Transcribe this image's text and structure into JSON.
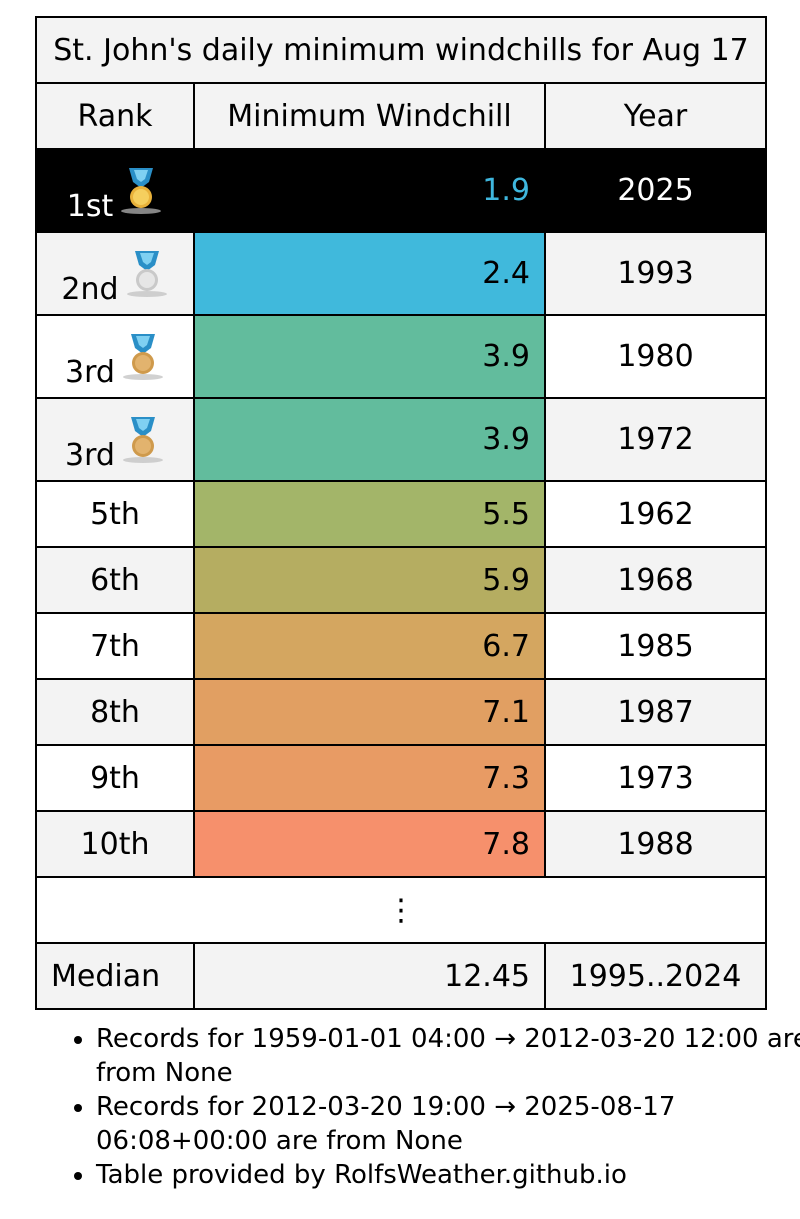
{
  "table": {
    "title": "St. John's daily minimum windchills for Aug 17",
    "headers": [
      "Rank",
      "Minimum Windchill",
      "Year"
    ],
    "rows": [
      {
        "rank": "1st",
        "value": "1.9",
        "year": "2025",
        "color": "#000000",
        "medal": "gold-medal-icon"
      },
      {
        "rank": "2nd",
        "value": "2.4",
        "year": "1993",
        "color": "#40b9dc",
        "medal": "silver-medal-icon"
      },
      {
        "rank": "3rd",
        "value": "3.9",
        "year": "1980",
        "color": "#62bc9d",
        "medal": "bronze-medal-icon"
      },
      {
        "rank": "3rd",
        "value": "3.9",
        "year": "1972",
        "color": "#62bc9d",
        "medal": "bronze-medal-icon"
      },
      {
        "rank": "5th",
        "value": "5.5",
        "year": "1962",
        "color": "#a3b569"
      },
      {
        "rank": "6th",
        "value": "5.9",
        "year": "1968",
        "color": "#b5ad61"
      },
      {
        "rank": "7th",
        "value": "6.7",
        "year": "1985",
        "color": "#d4a660"
      },
      {
        "rank": "8th",
        "value": "7.1",
        "year": "1987",
        "color": "#e19f62"
      },
      {
        "rank": "9th",
        "value": "7.3",
        "year": "1973",
        "color": "#e89b64"
      },
      {
        "rank": "10th",
        "value": "7.8",
        "year": "1988",
        "color": "#f6906c"
      }
    ],
    "ellipsis": "⋮",
    "median": {
      "label": "Median",
      "value": "12.45",
      "years": "1995..2024"
    }
  },
  "notes": [
    "Records for 1959-01-01 04:00 → 2012-03-20 12:00 are from None",
    "Records for 2012-03-20 19:00 → 2025-08-17 06:08+00:00 are from None",
    "Table provided by RolfsWeather.github.io"
  ]
}
